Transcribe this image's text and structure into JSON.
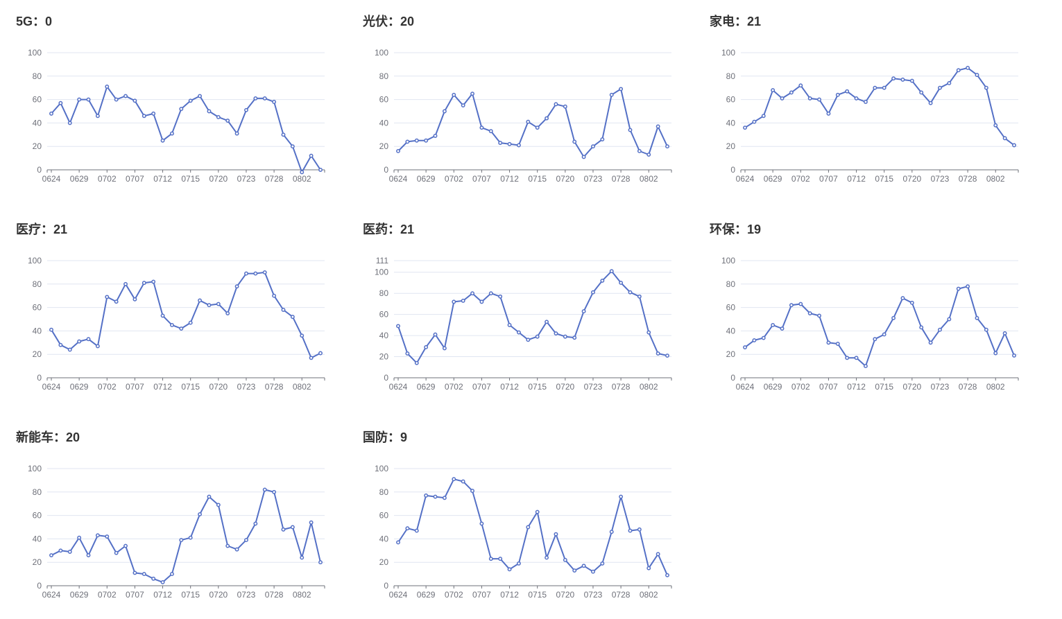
{
  "colors": {
    "series": "#5470c6",
    "grid": "#e0e6f1",
    "axis": "#6e7079",
    "title": "#333333"
  },
  "chart_data": [
    {
      "type": "line",
      "title": "5G：0",
      "yticks": [
        0,
        20,
        40,
        60,
        80,
        100
      ],
      "ylim": [
        0,
        100
      ],
      "xtick_labels": [
        "0624",
        "0629",
        "0702",
        "0707",
        "0712",
        "0715",
        "0720",
        "0723",
        "0728",
        "0802"
      ],
      "series": [
        {
          "values": [
            48,
            57,
            40,
            60,
            60,
            46,
            71,
            60,
            63,
            59,
            46,
            48,
            25,
            31,
            52,
            59,
            63,
            50,
            45,
            42,
            31,
            51,
            61,
            61,
            58,
            30,
            20,
            -2,
            12,
            0
          ]
        }
      ]
    },
    {
      "type": "line",
      "title": "光伏：20",
      "yticks": [
        0,
        20,
        40,
        60,
        80,
        100
      ],
      "ylim": [
        0,
        100
      ],
      "xtick_labels": [
        "0624",
        "0629",
        "0702",
        "0707",
        "0712",
        "0715",
        "0720",
        "0723",
        "0728",
        "0802"
      ],
      "series": [
        {
          "values": [
            16,
            24,
            25,
            25,
            29,
            50,
            64,
            55,
            65,
            36,
            33,
            23,
            22,
            21,
            41,
            36,
            44,
            56,
            54,
            24,
            11,
            20,
            26,
            64,
            69,
            34,
            16,
            13,
            37,
            20
          ]
        }
      ]
    },
    {
      "type": "line",
      "title": "家电：21",
      "yticks": [
        0,
        20,
        40,
        60,
        80,
        100
      ],
      "ylim": [
        0,
        100
      ],
      "xtick_labels": [
        "0624",
        "0629",
        "0702",
        "0707",
        "0712",
        "0715",
        "0720",
        "0723",
        "0728",
        "0802"
      ],
      "series": [
        {
          "values": [
            36,
            41,
            46,
            68,
            61,
            66,
            72,
            61,
            60,
            48,
            64,
            67,
            61,
            58,
            70,
            70,
            78,
            77,
            76,
            66,
            57,
            70,
            74,
            85,
            87,
            81,
            70,
            38,
            27,
            21
          ]
        }
      ]
    },
    {
      "type": "line",
      "title": "医疗：21",
      "yticks": [
        0,
        20,
        40,
        60,
        80,
        100
      ],
      "ylim": [
        0,
        100
      ],
      "xtick_labels": [
        "0624",
        "0629",
        "0702",
        "0707",
        "0712",
        "0715",
        "0720",
        "0723",
        "0728",
        "0802"
      ],
      "series": [
        {
          "values": [
            41,
            28,
            24,
            31,
            33,
            27,
            69,
            65,
            80,
            67,
            81,
            82,
            53,
            45,
            42,
            47,
            66,
            62,
            63,
            55,
            78,
            89,
            89,
            90,
            70,
            58,
            52,
            36,
            17,
            21
          ]
        }
      ]
    },
    {
      "type": "line",
      "title": "医药：21",
      "yticks": [
        0,
        20,
        40,
        60,
        80,
        100,
        111
      ],
      "ylim": [
        0,
        111
      ],
      "xtick_labels": [
        "0624",
        "0629",
        "0702",
        "0707",
        "0712",
        "0715",
        "0720",
        "0723",
        "0728",
        "0802"
      ],
      "series": [
        {
          "values": [
            49,
            23,
            14,
            29,
            41,
            28,
            72,
            73,
            80,
            72,
            80,
            77,
            50,
            43,
            36,
            39,
            53,
            42,
            39,
            38,
            63,
            81,
            92,
            101,
            90,
            81,
            77,
            43,
            23,
            21
          ]
        }
      ]
    },
    {
      "type": "line",
      "title": "环保：19",
      "yticks": [
        0,
        20,
        40,
        60,
        80,
        100
      ],
      "ylim": [
        0,
        100
      ],
      "xtick_labels": [
        "0624",
        "0629",
        "0702",
        "0707",
        "0712",
        "0715",
        "0720",
        "0723",
        "0728",
        "0802"
      ],
      "series": [
        {
          "values": [
            26,
            32,
            34,
            45,
            42,
            62,
            63,
            55,
            53,
            30,
            29,
            17,
            17,
            10,
            33,
            37,
            51,
            68,
            64,
            43,
            30,
            41,
            50,
            76,
            78,
            51,
            41,
            21,
            38,
            19
          ]
        }
      ]
    },
    {
      "type": "line",
      "title": "新能车：20",
      "yticks": [
        0,
        20,
        40,
        60,
        80,
        100
      ],
      "ylim": [
        0,
        100
      ],
      "xtick_labels": [
        "0624",
        "0629",
        "0702",
        "0707",
        "0712",
        "0715",
        "0720",
        "0723",
        "0728",
        "0802"
      ],
      "series": [
        {
          "values": [
            26,
            30,
            29,
            41,
            26,
            43,
            42,
            28,
            34,
            11,
            10,
            6,
            3,
            10,
            39,
            41,
            61,
            76,
            69,
            34,
            31,
            39,
            53,
            82,
            80,
            48,
            50,
            24,
            54,
            20
          ]
        }
      ]
    },
    {
      "type": "line",
      "title": "国防：9",
      "yticks": [
        0,
        20,
        40,
        60,
        80,
        100
      ],
      "ylim": [
        0,
        100
      ],
      "xtick_labels": [
        "0624",
        "0629",
        "0702",
        "0707",
        "0712",
        "0715",
        "0720",
        "0723",
        "0728",
        "0802"
      ],
      "series": [
        {
          "values": [
            37,
            49,
            47,
            77,
            76,
            75,
            91,
            89,
            81,
            53,
            23,
            23,
            14,
            19,
            50,
            63,
            24,
            44,
            22,
            13,
            17,
            12,
            19,
            46,
            76,
            47,
            48,
            15,
            27,
            9
          ]
        }
      ]
    }
  ]
}
